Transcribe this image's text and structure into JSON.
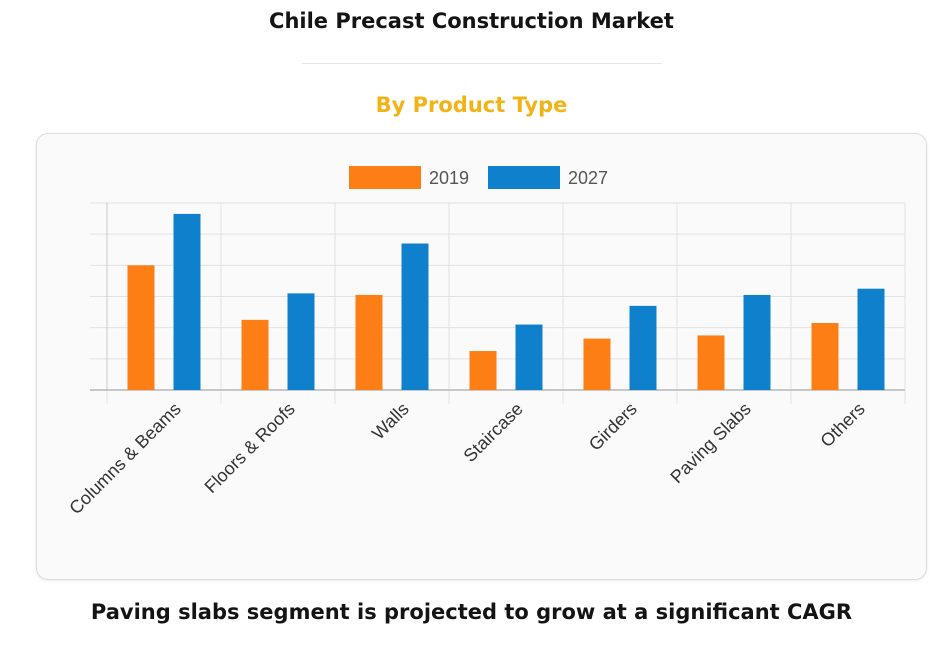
{
  "page": {
    "title": "Chile Precast Construction Market",
    "subtitle": "By Product Type",
    "caption": "Paving slabs segment is projected to grow at a significant CAGR"
  },
  "colors": {
    "series_2019": "#fd7e14",
    "series_2027": "#0f80cc",
    "subtitle": "#f2b316"
  },
  "chart_data": {
    "type": "bar",
    "categories": [
      "Columns & Beams",
      "Floors & Roofs",
      "Walls",
      "Staircase",
      "Girders",
      "Paving Slabs",
      "Others"
    ],
    "series": [
      {
        "name": "2019",
        "values": [
          4.0,
          2.25,
          3.05,
          1.25,
          1.65,
          1.75,
          2.15
        ]
      },
      {
        "name": "2027",
        "values": [
          5.65,
          3.1,
          4.7,
          2.1,
          2.7,
          3.05,
          3.25
        ]
      }
    ],
    "ylim": [
      0,
      6
    ],
    "y_gridlines": 6,
    "y_tick_labels_shown": false,
    "grid": true,
    "legend_position": "top-center",
    "xlabel": "",
    "ylabel": ""
  }
}
